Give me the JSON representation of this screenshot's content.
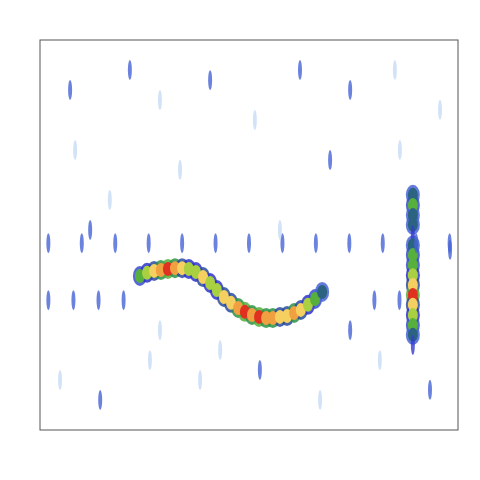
{
  "chart_data": {
    "type": "heatmap",
    "x": [
      23.9,
      25.6,
      27.3,
      28.9,
      30.6,
      32.3,
      34.0,
      35.6,
      37.3,
      39.0,
      40.7,
      42.3,
      44.0,
      45.7,
      47.4,
      49.0,
      50.7,
      52.4,
      54.1,
      55.7,
      57.4,
      59.1,
      60.8,
      62.4,
      64.1,
      65.8,
      67.5,
      89.2,
      89.2,
      89.2,
      89.2,
      89.2,
      89.2,
      89.2,
      89.2,
      89.2,
      89.2,
      89.2,
      89.2,
      89.2,
      89.2,
      89.2,
      89.2,
      2,
      10,
      18,
      26,
      34,
      42,
      50,
      58,
      66,
      74,
      82,
      90,
      98,
      2,
      8,
      14,
      20,
      80,
      86,
      7.2,
      8.4,
      21.5,
      28.7,
      40.7,
      51.4,
      62.2,
      74.2,
      84.9,
      95.7,
      4.8,
      14.4,
      26.3,
      38.3,
      52.6,
      67.0,
      81.3,
      93.3,
      12.0,
      57.4,
      28.7,
      74.2,
      43.1,
      86.1,
      69.4,
      33.5,
      16.7,
      98.1
    ],
    "y": [
      39.5,
      40.3,
      40.8,
      41.0,
      41.3,
      41.5,
      41.5,
      41.3,
      40.5,
      39.2,
      37.7,
      35.9,
      34.1,
      32.6,
      31.3,
      30.3,
      29.5,
      29.0,
      28.7,
      28.7,
      29.0,
      29.2,
      30.0,
      30.8,
      32.1,
      33.6,
      35.4,
      60.3,
      57.7,
      55.1,
      52.6,
      50.0,
      47.4,
      44.9,
      42.3,
      39.7,
      37.2,
      34.6,
      32.1,
      29.5,
      26.9,
      24.4,
      21.8,
      47.9,
      47.9,
      47.9,
      47.9,
      47.9,
      47.9,
      47.9,
      47.9,
      47.9,
      47.9,
      47.9,
      47.9,
      47.9,
      33.3,
      33.3,
      33.3,
      33.3,
      33.3,
      33.3,
      87.2,
      71.8,
      92.3,
      84.6,
      89.7,
      79.5,
      92.3,
      87.2,
      92.3,
      82.1,
      12.8,
      7.7,
      17.9,
      12.8,
      15.4,
      7.7,
      17.9,
      10.3,
      51.3,
      51.3,
      25.6,
      25.6,
      20.5,
      71.8,
      69.2,
      66.7,
      59.0,
      46.2
    ],
    "values": [
      6,
      7,
      8,
      9,
      10,
      9,
      8,
      7,
      7,
      8,
      7,
      7,
      8,
      8,
      9,
      10,
      9,
      10,
      9,
      9,
      8,
      8,
      9,
      8,
      7,
      6,
      5,
      5,
      6,
      5,
      5,
      4,
      5,
      6,
      6,
      7,
      8,
      10,
      8,
      7,
      6,
      5,
      4,
      3,
      3,
      3,
      3,
      3,
      3,
      3,
      3,
      3,
      3,
      3,
      3,
      3,
      3,
      3,
      3,
      3,
      3,
      3,
      3,
      2,
      3,
      2,
      3,
      2,
      3,
      3,
      2,
      2,
      2,
      3,
      2,
      2,
      3,
      2,
      2,
      3,
      3,
      2,
      2,
      3,
      2,
      2,
      3,
      2,
      2,
      3
    ],
    "xlim": [
      0,
      100
    ],
    "ylim": [
      0,
      100
    ],
    "zlim": [
      0,
      10
    ],
    "tick_labels": false
  }
}
